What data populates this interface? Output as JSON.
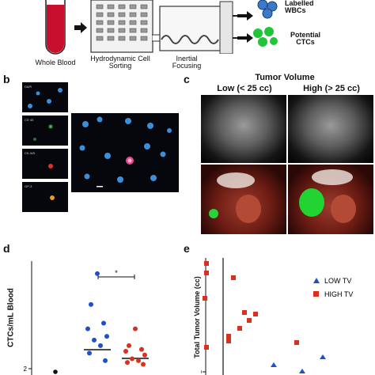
{
  "panel_a": {
    "whole_blood": "Whole Blood",
    "hydrodynamic": "Hydrodynamic Cell Sorting",
    "inertial": "Inertial Focusing",
    "labelled_wbcs": "Labelled WBCs",
    "potential_ctcs": "Potential CTCs"
  },
  "panel_b": {
    "letter": "b",
    "stains": [
      "DAPI",
      "CD 45",
      "CK-WS",
      "GP-3"
    ]
  },
  "panel_c": {
    "letter": "c",
    "title": "Tumor Volume",
    "low": "Low (< 25 cc)",
    "high": "High (> 25 cc)"
  },
  "panel_d": {
    "letter": "d",
    "ylabel": "CTCs/mL Blood",
    "significance": "*",
    "ytick_visible": "2",
    "blue_points": [
      105,
      72,
      52,
      46,
      38,
      34,
      28,
      20,
      12
    ],
    "red_points": [
      46,
      28,
      24,
      22,
      18,
      14,
      12,
      10,
      8
    ],
    "colors": {
      "blue": "#1f4fcf",
      "red": "#d9301f"
    }
  },
  "panel_e": {
    "letter": "e",
    "ylabel": "Total Tumor Volume (cc)",
    "legend_low": "LOW TV",
    "legend_high": "HIGH TV",
    "ytick_visible": "10"
  },
  "chart_data": [
    {
      "type": "scatter",
      "ylabel": "CTCs/mL Blood",
      "series": [
        {
          "values": [
            105,
            72,
            52,
            46,
            38,
            34,
            28,
            20,
            12
          ],
          "color": "#1f4fcf"
        },
        {
          "values": [
            46,
            28,
            24,
            22,
            18,
            14,
            12,
            10,
            8
          ],
          "color": "#d9301f"
        }
      ]
    },
    {
      "type": "scatter",
      "ylabel": "Total Tumor Volume (cc)",
      "series": [
        {
          "name": "LOW TV",
          "marker": "triangle",
          "color": "#1f4fcf"
        },
        {
          "name": "HIGH TV",
          "marker": "square",
          "color": "#d9301f"
        }
      ]
    }
  ]
}
